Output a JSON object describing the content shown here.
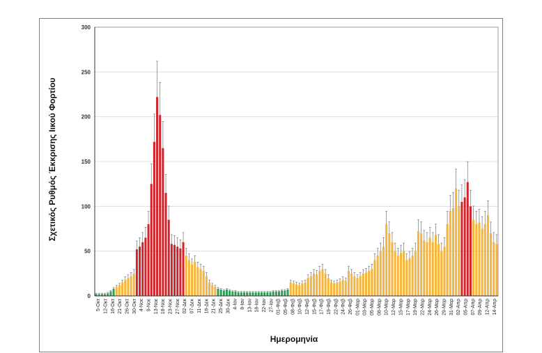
{
  "chart_data": {
    "type": "bar",
    "title": "",
    "xlabel": "Ημερομηνία",
    "ylabel": "Σχετικός Ρυθμός Έκκρισης Ιικού Φορτίου",
    "ylim": [
      0,
      300
    ],
    "yticks": [
      0,
      50,
      100,
      150,
      200,
      250,
      300
    ],
    "grid": true,
    "error_bars": true,
    "colors": {
      "green": "#2e9e56",
      "orange": "#f5b43c",
      "red": "#d2232a",
      "error": "#777777",
      "grid": "#d9d9d9",
      "axis": "#333333"
    },
    "tick_labels": [
      "5-Οκτ",
      "12-Οκτ",
      "16-Οκτ",
      "21-Οκτ",
      "26-Οκτ",
      "30-Οκτ",
      "4-Νοε",
      "9-Νοε",
      "13-Νοε",
      "18-Νοε",
      "23-Νοε",
      "27-Νοε",
      "02-Δεκ",
      "07-Δεκ",
      "11-Δεκ",
      "16-Δεκ",
      "21-Δεκ",
      "25-Δεκ",
      "30-Δεκ",
      "4-Ιαν",
      "8-Ιαν",
      "13-Ιαν",
      "18-Ιαν",
      "22-Ιαν",
      "27-Ιαν",
      "01-Φεβ",
      "05-Φεβ",
      "08-Φεβ",
      "10-Φεβ",
      "12-Φεβ",
      "15-Φεβ",
      "17-Φεβ",
      "19-Φεβ",
      "22-Φεβ",
      "24-Φεβ",
      "26-Φεβ",
      "01-Μαρ",
      "03-Μαρ",
      "05-Μαρ",
      "08-Μαρ",
      "10-Μαρ",
      "12-Μαρ",
      "15-Μαρ",
      "17-Μαρ",
      "19-Μαρ",
      "22-Μαρ",
      "24-Μαρ",
      "26-Μαρ",
      "29-Μαρ",
      "31-Μαρ",
      "02-Απρ",
      "05-Απρ",
      "07-Απρ",
      "09-Απρ",
      "12-Απρ",
      "14-Απρ"
    ],
    "values": [
      2,
      2,
      2,
      2,
      3,
      5,
      8,
      10,
      12,
      15,
      18,
      20,
      22,
      25,
      52,
      55,
      60,
      65,
      80,
      125,
      172,
      222,
      202,
      165,
      115,
      85,
      58,
      57,
      55,
      53,
      60,
      45,
      40,
      35,
      38,
      32,
      30,
      28,
      22,
      15,
      12,
      10,
      8,
      7,
      6,
      7,
      6,
      5,
      5,
      4,
      4,
      4,
      4,
      4,
      4,
      4,
      4,
      4,
      4,
      4,
      4,
      5,
      5,
      5,
      6,
      6,
      7,
      15,
      14,
      13,
      12,
      14,
      15,
      20,
      22,
      25,
      24,
      28,
      30,
      25,
      20,
      15,
      14,
      15,
      16,
      18,
      17,
      28,
      25,
      22,
      20,
      22,
      25,
      26,
      28,
      30,
      40,
      45,
      50,
      55,
      80,
      70,
      60,
      50,
      45,
      48,
      50,
      40,
      42,
      45,
      50,
      72,
      70,
      62,
      60,
      65,
      60,
      68,
      58,
      50,
      55,
      80,
      95,
      98,
      120,
      100,
      105,
      110,
      127,
      100,
      85,
      80,
      82,
      75,
      80,
      90,
      70,
      60,
      58
    ]
  }
}
